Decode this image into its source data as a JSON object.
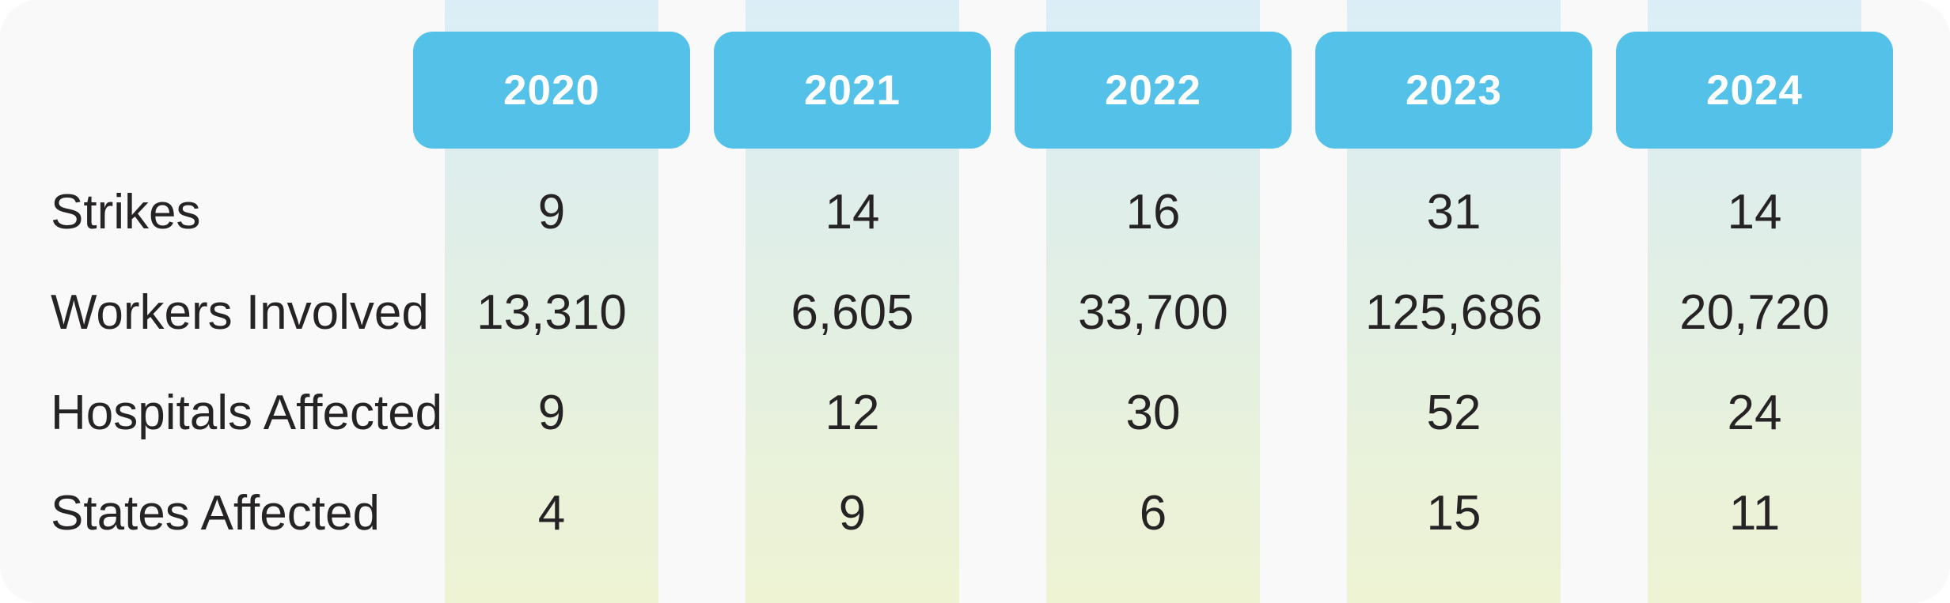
{
  "table": {
    "years": [
      "2020",
      "2021",
      "2022",
      "2023",
      "2024"
    ],
    "rows": [
      {
        "label": "Strikes",
        "values": [
          "9",
          "14",
          "16",
          "31",
          "14"
        ]
      },
      {
        "label": "Workers Involved",
        "values": [
          "13,310",
          "6,605",
          "33,700",
          "125,686",
          "20,720"
        ]
      },
      {
        "label": "Hospitals Affected",
        "values": [
          "9",
          "12",
          "30",
          "52",
          "24"
        ]
      },
      {
        "label": "States Affected",
        "values": [
          "4",
          "9",
          "6",
          "15",
          "11"
        ]
      }
    ]
  },
  "chart_data": {
    "type": "table",
    "columns": [
      "2020",
      "2021",
      "2022",
      "2023",
      "2024"
    ],
    "row_labels": [
      "Strikes",
      "Workers Involved",
      "Hospitals Affected",
      "States Affected"
    ],
    "series": [
      {
        "name": "Strikes",
        "values": [
          9,
          14,
          16,
          31,
          14
        ]
      },
      {
        "name": "Workers Involved",
        "values": [
          13310,
          6605,
          33700,
          125686,
          20720
        ]
      },
      {
        "name": "Hospitals Affected",
        "values": [
          9,
          12,
          30,
          52,
          24
        ]
      },
      {
        "name": "States Affected",
        "values": [
          4,
          9,
          6,
          15,
          11
        ]
      }
    ],
    "title": "",
    "legend_position": "none",
    "grid": false
  },
  "colors": {
    "card_background": "#f9f9f9",
    "pill_blue": "#54c1e9",
    "pill_text": "#ffffff",
    "body_text": "#262324",
    "stripe_gradient": [
      "#dbeef7",
      "#deeeee",
      "#e3efe2",
      "#eaf2d9",
      "#eef3d4"
    ]
  }
}
